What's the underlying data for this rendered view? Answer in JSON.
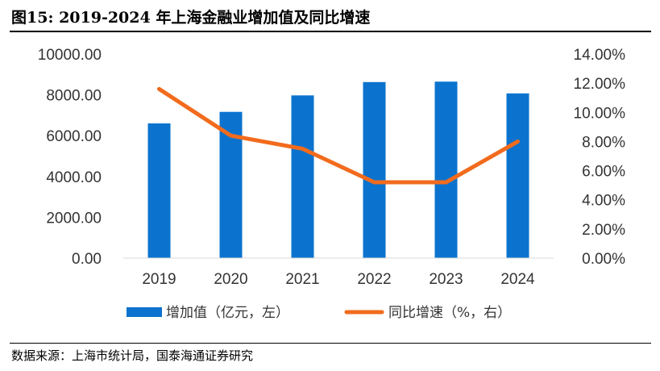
{
  "figure_title": "图15:  2019-2024 年上海金融业增加值及同比增速",
  "source": "数据来源：上海市统计局，国泰海通证券研究",
  "chart_data": {
    "type": "bar+line",
    "title": "2019-2024 年上海金融业增加值及同比增速",
    "categories": [
      "2019",
      "2020",
      "2021",
      "2022",
      "2023",
      "2024"
    ],
    "series": [
      {
        "name": "增加值（亿元，左）",
        "type": "bar",
        "axis": "left",
        "color": "#0B73CE",
        "values": [
          6600,
          7166,
          7973,
          8626,
          8647,
          8072
        ]
      },
      {
        "name": "同比增速（%，右）",
        "type": "line",
        "axis": "right",
        "color": "#F26B1D",
        "values": [
          11.6,
          8.4,
          7.5,
          5.2,
          5.2,
          8.0
        ]
      }
    ],
    "y_left": {
      "min": 0,
      "max": 10000,
      "step": 2000,
      "tick_labels": [
        "0.00",
        "2000.00",
        "4000.00",
        "6000.00",
        "8000.00",
        "10000.00"
      ]
    },
    "y_right": {
      "min": 0,
      "max": 14,
      "step": 2,
      "tick_labels": [
        "0.00%",
        "2.00%",
        "4.00%",
        "6.00%",
        "8.00%",
        "10.00%",
        "12.00%",
        "14.00%"
      ]
    },
    "grid": false,
    "legend_position": "bottom"
  }
}
